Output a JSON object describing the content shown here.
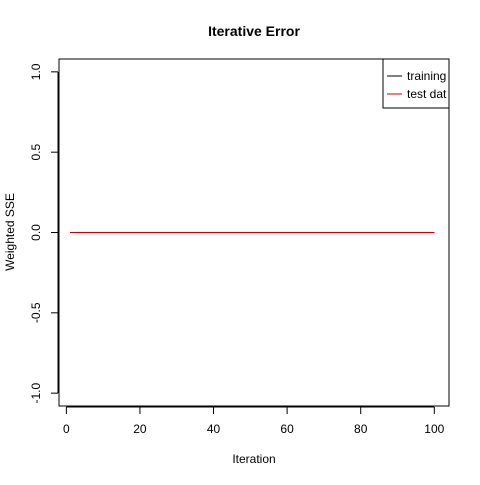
{
  "chart_data": {
    "type": "line",
    "title": "Iterative Error",
    "xlabel": "Iteration",
    "ylabel": "Weighted SSE",
    "xlim": [
      -2,
      104
    ],
    "ylim": [
      -1.08,
      1.08
    ],
    "x_ticks": [
      0,
      20,
      40,
      60,
      80,
      100
    ],
    "x_tick_labels": [
      "0",
      "20",
      "40",
      "60",
      "80",
      "100"
    ],
    "y_ticks": [
      -1.0,
      -0.5,
      0.0,
      0.5,
      1.0
    ],
    "y_tick_labels": [
      "-1.0",
      "-0.5",
      "0.0",
      "0.5",
      "1.0"
    ],
    "grid": false,
    "legend_position": "top-right",
    "series": [
      {
        "name": "training",
        "color": "#000000",
        "x": [
          1,
          100
        ],
        "y": [
          0,
          0
        ]
      },
      {
        "name": "test dat",
        "color": "#cc0000",
        "x": [
          1,
          100
        ],
        "y": [
          0,
          0
        ]
      }
    ]
  }
}
